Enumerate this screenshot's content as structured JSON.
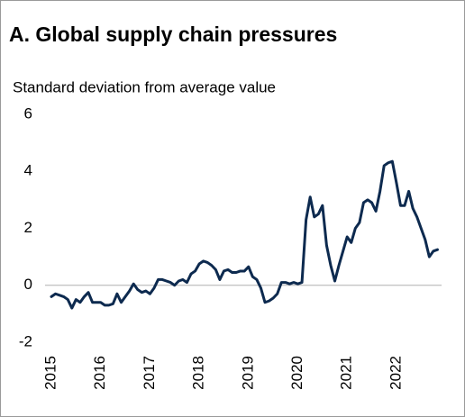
{
  "chart_data": {
    "type": "line",
    "title": "A. Global supply chain pressures",
    "subtitle": "Standard deviation from average value",
    "categories": [
      "2015",
      null,
      null,
      null,
      null,
      null,
      null,
      null,
      null,
      null,
      null,
      null,
      "2016",
      null,
      null,
      null,
      null,
      null,
      null,
      null,
      null,
      null,
      null,
      null,
      "2017",
      null,
      null,
      null,
      null,
      null,
      null,
      null,
      null,
      null,
      null,
      null,
      "2018",
      null,
      null,
      null,
      null,
      null,
      null,
      null,
      null,
      null,
      null,
      null,
      "2019",
      null,
      null,
      null,
      null,
      null,
      null,
      null,
      null,
      null,
      null,
      null,
      "2020",
      null,
      null,
      null,
      null,
      null,
      null,
      null,
      null,
      null,
      null,
      null,
      "2021",
      null,
      null,
      null,
      null,
      null,
      null,
      null,
      null,
      null,
      null,
      null,
      "2022",
      null,
      null,
      null,
      null,
      null,
      null,
      null,
      null,
      null,
      null
    ],
    "values": [
      -0.4,
      -0.3,
      -0.35,
      -0.4,
      -0.5,
      -0.8,
      -0.5,
      -0.6,
      -0.4,
      -0.25,
      -0.6,
      -0.6,
      -0.6,
      -0.7,
      -0.7,
      -0.65,
      -0.3,
      -0.6,
      -0.4,
      -0.2,
      0.05,
      -0.15,
      -0.25,
      -0.2,
      -0.3,
      -0.1,
      0.2,
      0.2,
      0.15,
      0.1,
      0.0,
      0.15,
      0.2,
      0.1,
      0.4,
      0.5,
      0.75,
      0.85,
      0.8,
      0.7,
      0.55,
      0.2,
      0.5,
      0.55,
      0.45,
      0.45,
      0.5,
      0.5,
      0.65,
      0.3,
      0.2,
      -0.1,
      -0.6,
      -0.55,
      -0.45,
      -0.3,
      0.1,
      0.1,
      0.05,
      0.1,
      0.05,
      0.1,
      2.3,
      3.1,
      2.4,
      2.5,
      2.8,
      1.4,
      0.7,
      0.15,
      0.7,
      1.2,
      1.7,
      1.5,
      2.0,
      2.2,
      2.9,
      3.0,
      2.9,
      2.6,
      3.3,
      4.2,
      4.3,
      4.35,
      3.6,
      2.8,
      2.8,
      3.3,
      2.7,
      2.4,
      2.0,
      1.6,
      1.0,
      1.2,
      1.25
    ],
    "color": "#0d2a4f",
    "ylim": [
      -2,
      6
    ],
    "yticks": [
      -2,
      0,
      2,
      4,
      6
    ],
    "grid": false
  }
}
